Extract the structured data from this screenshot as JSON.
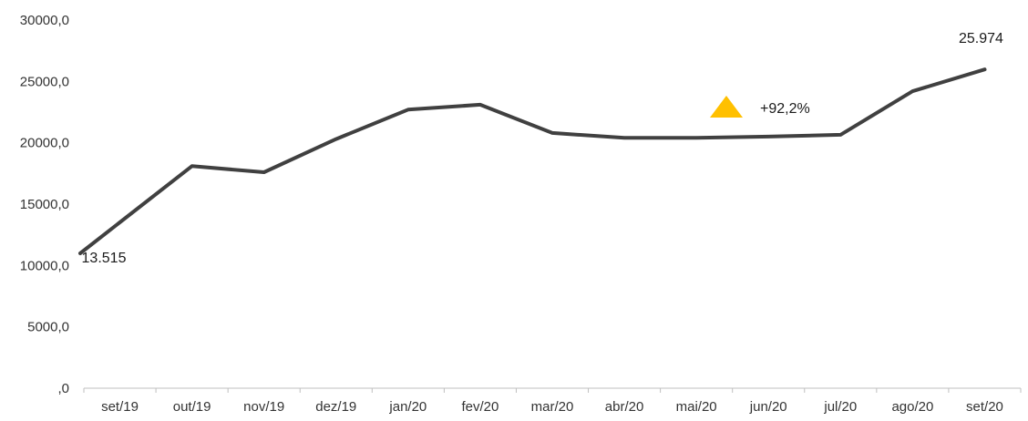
{
  "chart_data": {
    "type": "line",
    "categories": [
      "set/19",
      "out/19",
      "nov/19",
      "dez/19",
      "jan/20",
      "fev/20",
      "mar/20",
      "abr/20",
      "mai/20",
      "jun/20",
      "jul/20",
      "ago/20",
      "set/20"
    ],
    "series": [
      {
        "values": [
          13515,
          18100,
          17600,
          20300,
          22700,
          23100,
          20800,
          20400,
          20400,
          20500,
          20650,
          24200,
          25974
        ]
      }
    ],
    "y_ticks": [
      "30000,0",
      "25000,0",
      "20000,0",
      "15000,0",
      "10000,0",
      "5000,0",
      ",0"
    ],
    "ylim": [
      0,
      30000
    ],
    "grid": false,
    "data_labels": {
      "first": "13.515",
      "last": "25.974"
    },
    "annotation": {
      "text": "+92,2%",
      "icon": "up-triangle-icon"
    },
    "colors": {
      "line": "#404040",
      "marker": "#FFC000",
      "axis": "#BFBFBF"
    }
  }
}
